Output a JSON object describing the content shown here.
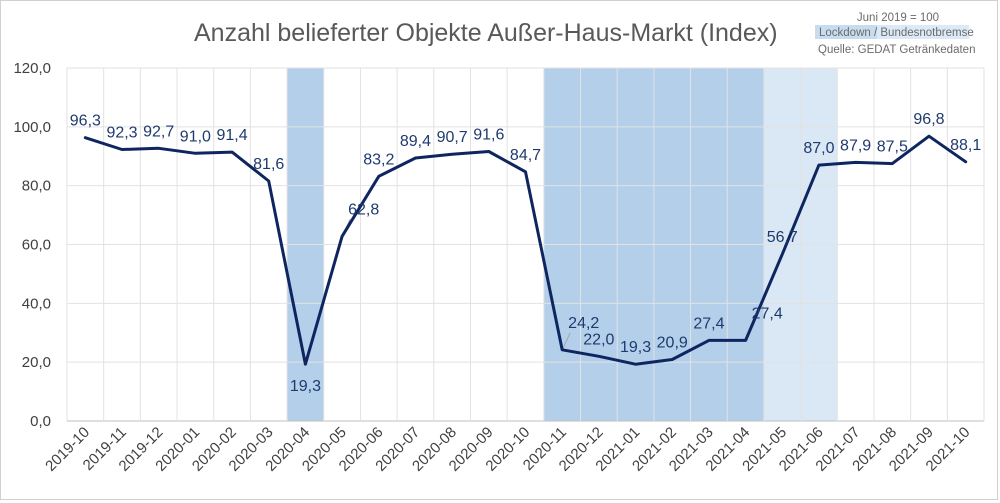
{
  "chart_data": {
    "type": "line",
    "title": "Anzahl belieferter Objekte Außer-Haus-Markt (Index)",
    "notes": {
      "base": "Juni 2019 = 100",
      "legend_lockdown": "Lockdown",
      "legend_separator": " / ",
      "legend_notbremse": "Bundesnotbremse",
      "source": "Quelle: GEDAT Getränkedaten"
    },
    "categories": [
      "2019-10",
      "2019-11",
      "2019-12",
      "2020-01",
      "2020-02",
      "2020-03",
      "2020-04",
      "2020-05",
      "2020-06",
      "2020-07",
      "2020-08",
      "2020-09",
      "2020-10",
      "2020-11",
      "2020-12",
      "2021-01",
      "2021-02",
      "2021-03",
      "2021-04",
      "2021-05",
      "2021-06",
      "2021-07",
      "2021-08",
      "2021-09",
      "2021-10"
    ],
    "values": [
      96.3,
      92.3,
      92.7,
      91.0,
      91.4,
      81.6,
      19.3,
      62.8,
      83.2,
      89.4,
      90.7,
      91.6,
      84.7,
      24.2,
      22.0,
      19.3,
      20.9,
      27.4,
      27.4,
      56.7,
      87.0,
      87.9,
      87.5,
      96.8,
      88.1
    ],
    "value_labels": [
      "96,3",
      "92,3",
      "92,7",
      "91,0",
      "91,4",
      "81,6",
      "19,3",
      "62,8",
      "83,2",
      "89,4",
      "90,7",
      "91,6",
      "84,7",
      "24,2",
      "22,0",
      "19,3",
      "20,9",
      "27,4",
      "27,4",
      "56,7",
      "87,0",
      "87,9",
      "87,5",
      "96,8",
      "88,1"
    ],
    "ylim": [
      0,
      120
    ],
    "yticks": [
      0,
      20,
      40,
      60,
      80,
      100,
      120
    ],
    "ytick_labels": [
      "0,0",
      "20,0",
      "40,0",
      "60,0",
      "80,0",
      "100,0",
      "120,0"
    ],
    "grid": true,
    "shaded_periods": [
      {
        "name": "Lockdown",
        "from": "2020-04",
        "to": "2020-04",
        "color": "#b4cfea"
      },
      {
        "name": "Lockdown",
        "from": "2020-11",
        "to": "2021-04",
        "color": "#b4cfea"
      },
      {
        "name": "Bundesnotbremse",
        "from": "2021-05",
        "to": "2021-06",
        "color": "#dae8f5"
      }
    ],
    "line_color": "#0f2560"
  }
}
